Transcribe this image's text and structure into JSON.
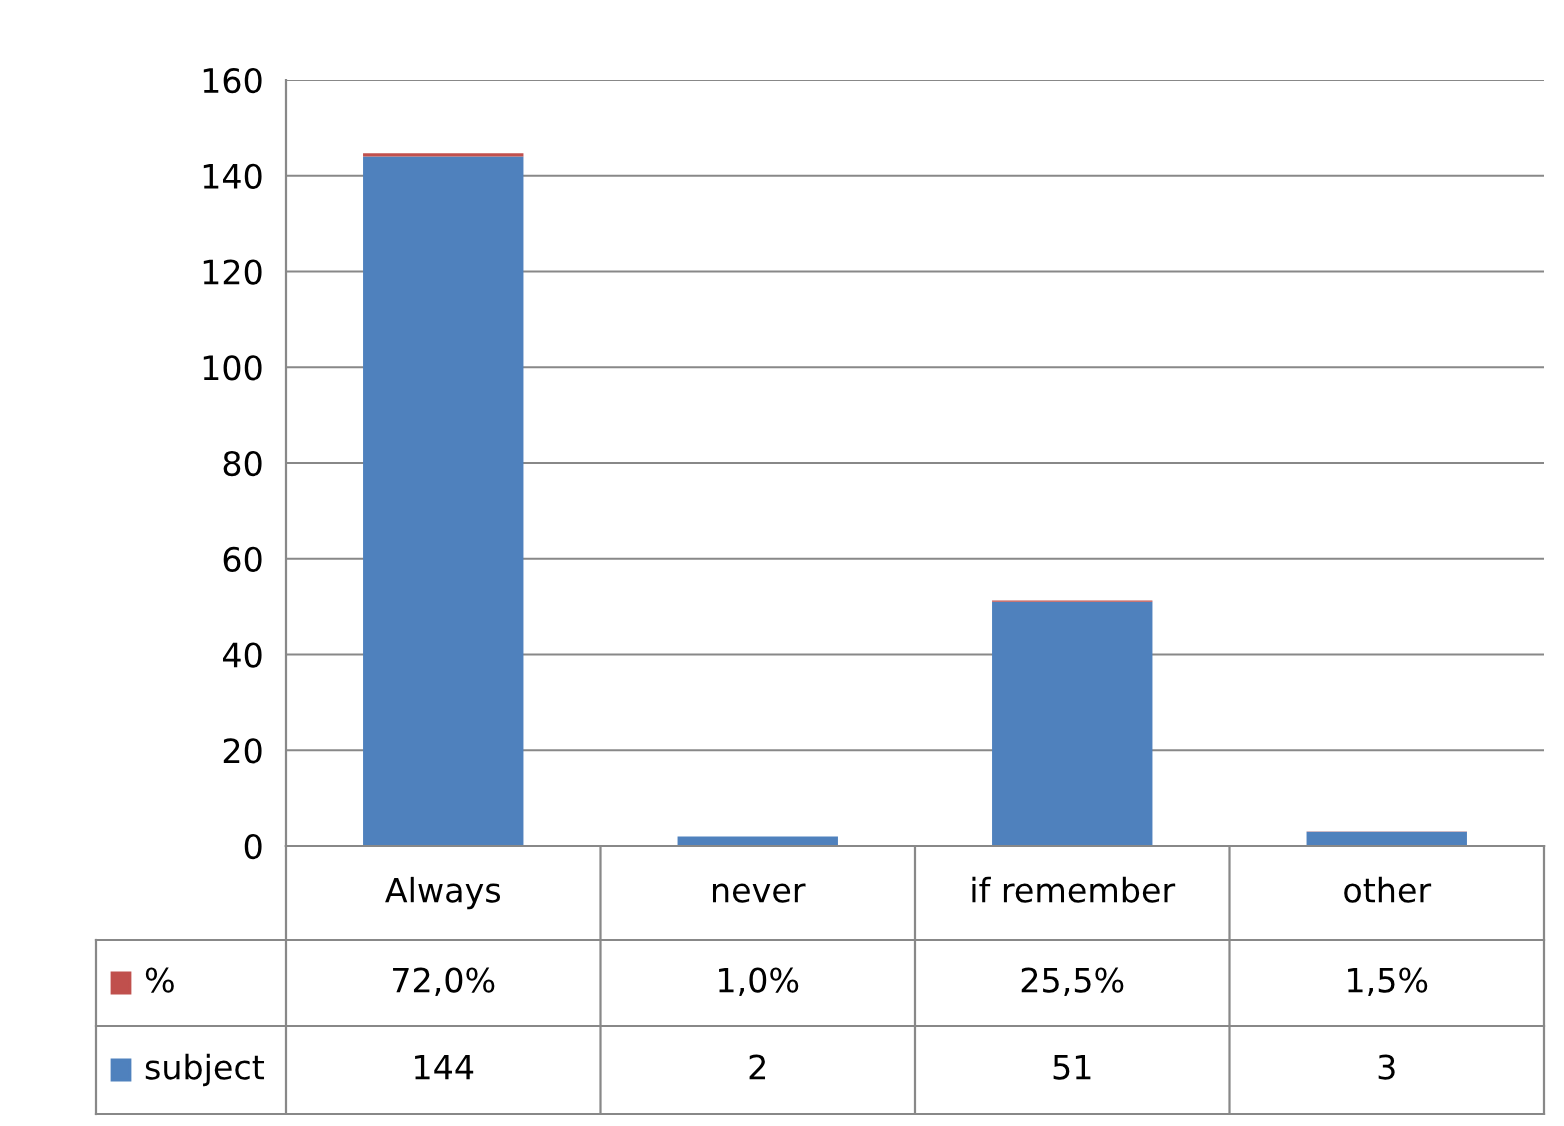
{
  "chart_data": {
    "type": "bar",
    "stacked": true,
    "categories": [
      "Always",
      "never",
      "if remember",
      "other"
    ],
    "series": [
      {
        "name": "subject",
        "color": "#4f81bd",
        "values": [
          144,
          2,
          51,
          3
        ],
        "value_labels": [
          "144",
          "2",
          "51",
          "3"
        ]
      },
      {
        "name": "%",
        "color": "#c0504d",
        "values": [
          0.72,
          0.01,
          0.255,
          0.015
        ],
        "value_labels": [
          "72,0%",
          "1,0%",
          "25,5%",
          "1,5%"
        ]
      }
    ],
    "ylim": [
      0,
      160
    ],
    "yticks": [
      0,
      20,
      40,
      60,
      80,
      100,
      120,
      140,
      160
    ],
    "grid": "y",
    "legend": "bottom"
  }
}
